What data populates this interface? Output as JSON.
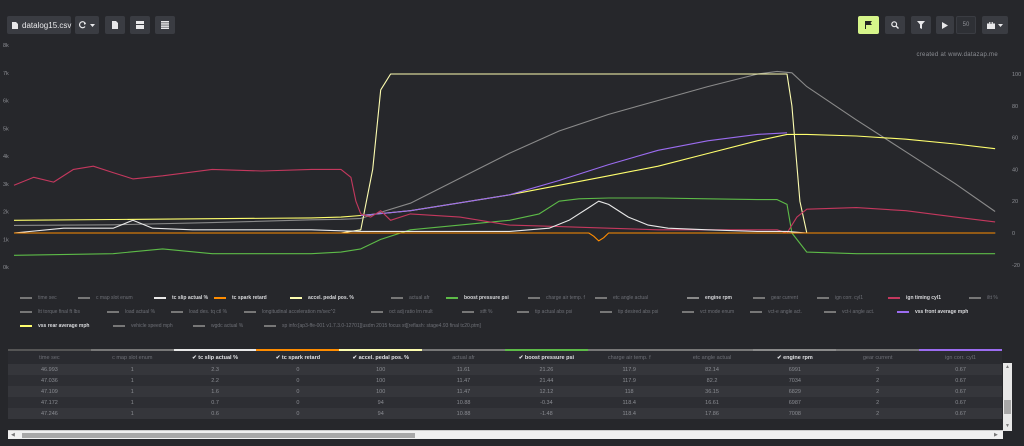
{
  "toolbar": {
    "file_label": "datalog15.csv",
    "interval_value": "50",
    "icons": [
      "file-icon",
      "refresh-icon",
      "document-icon",
      "layout-icon",
      "table-icon",
      "flag-icon",
      "zoom-icon",
      "filter-icon",
      "play-icon",
      "briefcase-icon"
    ]
  },
  "watermark": "created at www.datazap.me",
  "colors": {
    "background": "#26272b",
    "accent": "#d6f58a",
    "c_map_slot": "#777777",
    "tc_slip": "#e8e8e8",
    "tc_spark": "#ff8c00",
    "pedal": "#fdfdb0",
    "afr": "#777777",
    "boost": "#5dbb48",
    "charge_air": "#777777",
    "etc": "#777777",
    "rpm": "#8a8a8a",
    "gear": "#777777",
    "ign_corr": "#777777",
    "ign_timing": "#c4385e",
    "vss_front": "#9b6cf0",
    "vss_rear": "#ffff6e"
  },
  "legend": [
    {
      "label": "time sec",
      "color": "#777777",
      "active": false
    },
    {
      "label": "c map slot enum",
      "color": "#777777",
      "active": false
    },
    {
      "label": "tc slip actual %",
      "color": "#e8e8e8",
      "active": true
    },
    {
      "label": "tc spark retard",
      "color": "#ff8c00",
      "active": true
    },
    {
      "label": "accel. pedal pos. %",
      "color": "#fdfdb0",
      "active": true
    },
    {
      "label": "actual afr",
      "color": "#777777",
      "active": false
    },
    {
      "label": "boost pressure psi",
      "color": "#5dbb48",
      "active": true
    },
    {
      "label": "charge air temp. f",
      "color": "#777777",
      "active": false
    },
    {
      "label": "etc angle actual",
      "color": "#777777",
      "active": false
    },
    {
      "label": "engine rpm",
      "color": "#8a8a8a",
      "active": true
    },
    {
      "label": "gear current",
      "color": "#777777",
      "active": false
    },
    {
      "label": "ign corr. cyl1",
      "color": "#777777",
      "active": false
    },
    {
      "label": "ign timing cyl1",
      "color": "#c4385e",
      "active": true
    },
    {
      "label": "iltt %",
      "color": "#777777",
      "active": false
    },
    {
      "label": "ltt torque final ft lbs",
      "color": "#777777",
      "active": false
    },
    {
      "label": "load actual %",
      "color": "#777777",
      "active": false
    },
    {
      "label": "load des. tq ctl %",
      "color": "#777777",
      "active": false
    },
    {
      "label": "longitudinal acceleration m/sec^2",
      "color": "#777777",
      "active": false
    },
    {
      "label": "oct adj ratio lrn mult",
      "color": "#777777",
      "active": false
    },
    {
      "label": "stft %",
      "color": "#777777",
      "active": false
    },
    {
      "label": "tip actual abs psi",
      "color": "#777777",
      "active": false
    },
    {
      "label": "tip desired abs psi",
      "color": "#777777",
      "active": false
    },
    {
      "label": "vct mode enum",
      "color": "#777777",
      "active": false
    },
    {
      "label": "vct-e angle act.",
      "color": "#777777",
      "active": false
    },
    {
      "label": "vct-i angle act.",
      "color": "#777777",
      "active": false
    },
    {
      "label": "vss front average mph",
      "color": "#9b6cf0",
      "active": true
    },
    {
      "label": "vss rear average mph",
      "color": "#ffff6e",
      "active": true
    },
    {
      "label": "vehicle speed mph",
      "color": "#777777",
      "active": false
    },
    {
      "label": "wgdc actual %",
      "color": "#777777",
      "active": false
    },
    {
      "label": "sp info:[ap3-ffe-001 v1.7.3.0-12701][usdm 2015 focus st][reflash: stage4.93 final tc20.ptm]",
      "color": "#777777",
      "active": false
    }
  ],
  "table": {
    "columns": [
      {
        "label": "time sec",
        "active": false,
        "color": "#555555"
      },
      {
        "label": "c map slot enum",
        "active": false,
        "color": "#777777"
      },
      {
        "label": "tc slip actual %",
        "active": true,
        "color": "#e8e8e8"
      },
      {
        "label": "tc spark retard",
        "active": true,
        "color": "#ff8c00"
      },
      {
        "label": "accel. pedal pos. %",
        "active": true,
        "color": "#fdfdb0"
      },
      {
        "label": "actual afr",
        "active": false,
        "color": "#777777"
      },
      {
        "label": "boost pressure psi",
        "active": true,
        "color": "#5dbb48"
      },
      {
        "label": "charge air temp. f",
        "active": false,
        "color": "#777777"
      },
      {
        "label": "etc angle actual",
        "active": false,
        "color": "#777777"
      },
      {
        "label": "engine rpm",
        "active": true,
        "color": "#8a8a8a"
      },
      {
        "label": "gear current",
        "active": false,
        "color": "#777777"
      },
      {
        "label": "ign corr. cyl1",
        "active": false,
        "color": "#9b6cf0"
      }
    ],
    "rows": [
      [
        "46.993",
        "1",
        "2.3",
        "0",
        "100",
        "11.61",
        "21.26",
        "117.9",
        "82.14",
        "6991",
        "2",
        "0.67"
      ],
      [
        "47.036",
        "1",
        "2.2",
        "0",
        "100",
        "11.47",
        "21.44",
        "117.9",
        "82.2",
        "7034",
        "2",
        "0.67"
      ],
      [
        "47.109",
        "1",
        "1.6",
        "0",
        "100",
        "11.47",
        "12.12",
        "118",
        "36.15",
        "6829",
        "2",
        "0.67"
      ],
      [
        "47.172",
        "1",
        "0.7",
        "0",
        "94",
        "10.88",
        "-0.34",
        "118.4",
        "16.61",
        "6987",
        "2",
        "0.67"
      ],
      [
        "47.246",
        "1",
        "0.6",
        "0",
        "94",
        "10.88",
        "-1.48",
        "118.4",
        "17.86",
        "7008",
        "2",
        "0.67"
      ]
    ]
  },
  "chart_data": {
    "type": "line",
    "title": "",
    "xlabel": "",
    "ylabel": "",
    "x_range": [
      0,
      100
    ],
    "y_left": {
      "ticks": [
        "0k",
        "1k",
        "2k",
        "3k",
        "4k",
        "5k",
        "6k",
        "7k",
        "8k"
      ],
      "ylim": [
        0,
        8000
      ]
    },
    "y_right": {
      "ticks": [
        "100",
        "80",
        "60",
        "40",
        "20",
        "0",
        "-20"
      ],
      "ylim": [
        -25,
        107
      ]
    },
    "grid": false,
    "legend_position": "bottom",
    "series": [
      {
        "name": "engine rpm",
        "axis": "left",
        "color": "#8a8a8a",
        "x": [
          0,
          10,
          20,
          30,
          33,
          35,
          40,
          45,
          50,
          55,
          60,
          65,
          70,
          75,
          77,
          78.5,
          80,
          85,
          90,
          95,
          99
        ],
        "values": [
          1500,
          1520,
          1600,
          1700,
          1720,
          1750,
          2300,
          3200,
          4100,
          4900,
          5500,
          6000,
          6500,
          6950,
          7050,
          7000,
          6500,
          5300,
          4150,
          3000,
          2000
        ]
      },
      {
        "name": "accel. pedal pos. %",
        "axis": "right",
        "color": "#fdfdb0",
        "x": [
          0,
          33,
          35,
          36.2,
          37,
          38,
          40,
          60,
          75,
          77,
          78,
          78.5,
          79.3,
          80,
          85,
          99
        ],
        "values": [
          0,
          0,
          2,
          40,
          90,
          100,
          100,
          100,
          100,
          100,
          100,
          80,
          20,
          0,
          0,
          0
        ]
      },
      {
        "name": "vss rear average mph",
        "axis": "right",
        "color": "#ffff6e",
        "x": [
          0,
          10,
          20,
          30,
          33,
          35,
          40,
          45,
          50,
          55,
          60,
          65,
          70,
          75,
          78,
          80,
          85,
          90,
          95,
          99
        ],
        "values": [
          8,
          8.5,
          9,
          9.5,
          10,
          11,
          14,
          19,
          24,
          30,
          36,
          42,
          50,
          58,
          62,
          62,
          61,
          59,
          56,
          53
        ]
      },
      {
        "name": "vss front average mph",
        "axis": "right",
        "color": "#9b6cf0",
        "x": [
          35,
          40,
          45,
          50,
          55,
          60,
          65,
          70,
          75,
          78
        ],
        "values": [
          11,
          14,
          19,
          24,
          33,
          43,
          52,
          58,
          62,
          63
        ]
      },
      {
        "name": "boost pressure psi",
        "axis": "right",
        "color": "#5dbb48",
        "x": [
          0,
          10,
          15,
          20,
          30,
          33,
          35,
          37,
          40,
          45,
          50,
          53,
          55,
          57,
          60,
          65,
          70,
          75,
          77,
          78,
          78.5,
          80,
          85,
          90,
          95,
          99
        ],
        "values": [
          -14,
          -13,
          -10,
          -13,
          -13,
          -12,
          -10,
          -4,
          2,
          5,
          8,
          12,
          20,
          21.5,
          22,
          22,
          21.5,
          21,
          21,
          18,
          0,
          -12,
          -13,
          -13,
          -13,
          -13
        ]
      },
      {
        "name": "ign timing cyl1",
        "axis": "right",
        "color": "#c4385e",
        "x": [
          0,
          2,
          4,
          6,
          8,
          10,
          12,
          15,
          20,
          25,
          30,
          33,
          34,
          34.5,
          35,
          36,
          37,
          38,
          40,
          45,
          50,
          55,
          60,
          65,
          70,
          75,
          77,
          78,
          78.5,
          79,
          80,
          85,
          90,
          95,
          99
        ],
        "values": [
          30,
          35,
          32,
          40,
          42,
          38,
          34,
          36,
          40,
          39,
          40,
          40,
          35,
          20,
          12,
          10,
          14,
          8,
          12,
          10,
          5,
          4,
          3,
          2,
          2,
          2,
          2,
          0,
          5,
          10,
          15,
          16,
          14,
          10,
          7
        ]
      },
      {
        "name": "tc slip actual %",
        "axis": "right",
        "color": "#e8e8e8",
        "x": [
          0,
          5,
          10,
          12,
          14,
          18,
          30,
          35,
          40,
          50,
          54,
          56,
          58,
          59,
          60,
          62,
          64,
          66,
          70,
          75,
          77,
          78,
          80,
          90,
          99
        ],
        "values": [
          0,
          3,
          3,
          8,
          3,
          2,
          2,
          1,
          1,
          1,
          3,
          8,
          16,
          20,
          18,
          10,
          5,
          3,
          2,
          1,
          1,
          1,
          0,
          0,
          0
        ]
      },
      {
        "name": "tc spark retard",
        "axis": "right",
        "color": "#ff8c00",
        "x": [
          0,
          50,
          58,
          58.5,
          59,
          59.5,
          60,
          60.5,
          78,
          99
        ],
        "values": [
          0,
          0,
          0,
          -2,
          -5,
          -3,
          0,
          0,
          0,
          0
        ]
      }
    ]
  }
}
